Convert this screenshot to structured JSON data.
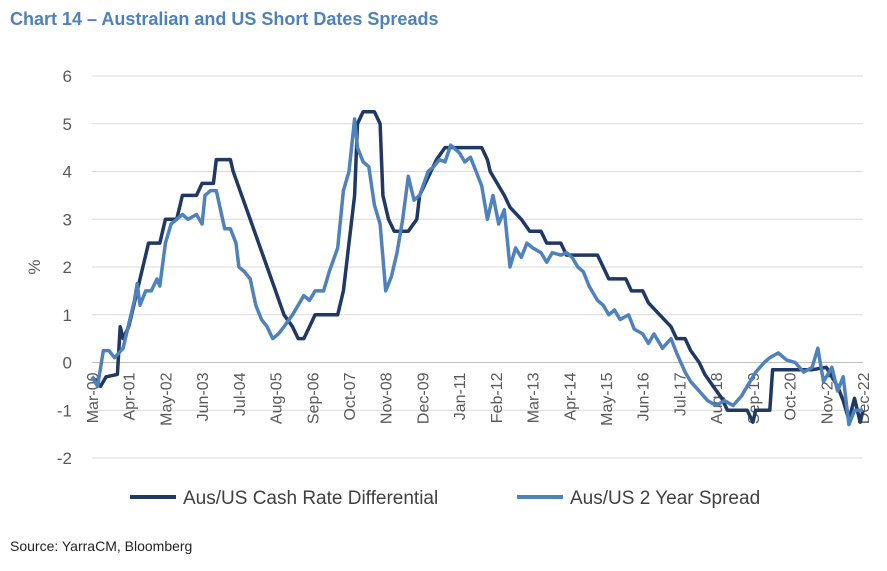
{
  "title": "Chart 14 – Australian and US Short Dates Spreads",
  "source": "Source: YarraCM, Bloomberg",
  "chart_data": {
    "type": "line",
    "ylabel": "%",
    "xlabel": "",
    "ylim": [
      -2,
      6
    ],
    "yticks": [
      6,
      5,
      4,
      3,
      2,
      1,
      0,
      -1,
      -2
    ],
    "xticks": [
      "Mar-00",
      "Apr-01",
      "May-02",
      "Jun-03",
      "Jul-04",
      "Aug-05",
      "Sep-06",
      "Oct-07",
      "Nov-08",
      "Dec-09",
      "Jan-11",
      "Feb-12",
      "Mar-13",
      "Apr-14",
      "May-15",
      "Jun-16",
      "Jul-17",
      "Aug-18",
      "Sep-19",
      "Oct-20",
      "Nov-21",
      "Dec-22"
    ],
    "xrange": [
      "2000-03",
      "2022-12"
    ],
    "grid": true,
    "legend_position": "bottom",
    "colors": {
      "cash": "#1f3864",
      "spread": "#4f81bd",
      "grid": "#d9d9d9"
    },
    "series": [
      {
        "name": "Aus/US Cash Rate Differential",
        "color": "#1f3864",
        "points": [
          [
            "2000-03",
            -0.3
          ],
          [
            "2000-06",
            -0.5
          ],
          [
            "2000-08",
            -0.3
          ],
          [
            "2000-12",
            -0.25
          ],
          [
            "2001-01",
            0.75
          ],
          [
            "2001-02",
            0.5
          ],
          [
            "2001-04",
            0.75
          ],
          [
            "2001-06",
            1.25
          ],
          [
            "2001-08",
            1.75
          ],
          [
            "2001-10",
            2.25
          ],
          [
            "2001-11",
            2.5
          ],
          [
            "2002-03",
            2.5
          ],
          [
            "2002-05",
            3.0
          ],
          [
            "2002-09",
            3.0
          ],
          [
            "2002-11",
            3.5
          ],
          [
            "2003-04",
            3.5
          ],
          [
            "2003-06",
            3.75
          ],
          [
            "2003-10",
            3.75
          ],
          [
            "2003-11",
            4.25
          ],
          [
            "2004-04",
            4.25
          ],
          [
            "2004-05",
            4.0
          ],
          [
            "2004-08",
            3.5
          ],
          [
            "2004-11",
            3.0
          ],
          [
            "2005-02",
            2.5
          ],
          [
            "2005-05",
            2.0
          ],
          [
            "2005-08",
            1.5
          ],
          [
            "2005-11",
            1.0
          ],
          [
            "2006-02",
            0.75
          ],
          [
            "2006-04",
            0.5
          ],
          [
            "2006-06",
            0.5
          ],
          [
            "2006-08",
            0.75
          ],
          [
            "2006-10",
            1.0
          ],
          [
            "2007-06",
            1.0
          ],
          [
            "2007-08",
            1.5
          ],
          [
            "2007-10",
            2.5
          ],
          [
            "2007-11",
            3.0
          ],
          [
            "2007-12",
            3.5
          ],
          [
            "2008-01",
            5.0
          ],
          [
            "2008-03",
            5.25
          ],
          [
            "2008-07",
            5.25
          ],
          [
            "2008-09",
            5.0
          ],
          [
            "2008-10",
            3.5
          ],
          [
            "2008-12",
            3.0
          ],
          [
            "2009-02",
            2.75
          ],
          [
            "2009-07",
            2.75
          ],
          [
            "2009-10",
            3.0
          ],
          [
            "2009-11",
            3.5
          ],
          [
            "2010-03",
            4.0
          ],
          [
            "2010-05",
            4.25
          ],
          [
            "2010-08",
            4.5
          ],
          [
            "2011-09",
            4.5
          ],
          [
            "2011-11",
            4.25
          ],
          [
            "2011-12",
            4.0
          ],
          [
            "2012-05",
            3.5
          ],
          [
            "2012-07",
            3.25
          ],
          [
            "2012-11",
            3.0
          ],
          [
            "2013-02",
            2.75
          ],
          [
            "2013-06",
            2.75
          ],
          [
            "2013-08",
            2.5
          ],
          [
            "2014-01",
            2.5
          ],
          [
            "2014-03",
            2.25
          ],
          [
            "2015-02",
            2.25
          ],
          [
            "2015-04",
            2.0
          ],
          [
            "2015-06",
            1.75
          ],
          [
            "2015-12",
            1.75
          ],
          [
            "2016-02",
            1.5
          ],
          [
            "2016-06",
            1.5
          ],
          [
            "2016-08",
            1.25
          ],
          [
            "2016-12",
            1.0
          ],
          [
            "2017-04",
            0.75
          ],
          [
            "2017-06",
            0.5
          ],
          [
            "2017-09",
            0.5
          ],
          [
            "2017-11",
            0.25
          ],
          [
            "2018-02",
            0.0
          ],
          [
            "2018-04",
            -0.25
          ],
          [
            "2018-07",
            -0.5
          ],
          [
            "2018-10",
            -0.75
          ],
          [
            "2018-12",
            -1.0
          ],
          [
            "2019-07",
            -1.0
          ],
          [
            "2019-09",
            -1.25
          ],
          [
            "2019-10",
            -1.0
          ],
          [
            "2020-03",
            -1.0
          ],
          [
            "2020-04",
            -0.15
          ],
          [
            "2020-12",
            -0.15
          ],
          [
            "2021-06",
            -0.15
          ],
          [
            "2021-11",
            -0.1
          ],
          [
            "2022-03",
            -0.5
          ],
          [
            "2022-05",
            -0.8
          ],
          [
            "2022-07",
            -1.2
          ],
          [
            "2022-09",
            -0.75
          ],
          [
            "2022-11",
            -1.25
          ],
          [
            "2022-12",
            -1.0
          ]
        ]
      },
      {
        "name": "Aus/US 2 Year Spread",
        "color": "#4f81bd",
        "points": [
          [
            "2000-03",
            -0.3
          ],
          [
            "2000-05",
            -0.5
          ],
          [
            "2000-07",
            0.25
          ],
          [
            "2000-09",
            0.25
          ],
          [
            "2000-11",
            0.1
          ],
          [
            "2001-02",
            0.3
          ],
          [
            "2001-04",
            0.8
          ],
          [
            "2001-06",
            1.3
          ],
          [
            "2001-07",
            1.65
          ],
          [
            "2001-08",
            1.2
          ],
          [
            "2001-10",
            1.5
          ],
          [
            "2001-12",
            1.5
          ],
          [
            "2002-02",
            1.75
          ],
          [
            "2002-03",
            1.6
          ],
          [
            "2002-05",
            2.5
          ],
          [
            "2002-07",
            2.9
          ],
          [
            "2002-09",
            3.0
          ],
          [
            "2002-11",
            3.1
          ],
          [
            "2003-01",
            3.0
          ],
          [
            "2003-04",
            3.1
          ],
          [
            "2003-06",
            2.9
          ],
          [
            "2003-07",
            3.5
          ],
          [
            "2003-09",
            3.6
          ],
          [
            "2003-11",
            3.6
          ],
          [
            "2004-02",
            2.8
          ],
          [
            "2004-04",
            2.8
          ],
          [
            "2004-06",
            2.5
          ],
          [
            "2004-07",
            2.0
          ],
          [
            "2004-09",
            1.9
          ],
          [
            "2004-11",
            1.75
          ],
          [
            "2005-01",
            1.2
          ],
          [
            "2005-03",
            0.9
          ],
          [
            "2005-05",
            0.75
          ],
          [
            "2005-07",
            0.5
          ],
          [
            "2005-09",
            0.6
          ],
          [
            "2005-11",
            0.75
          ],
          [
            "2006-02",
            1.0
          ],
          [
            "2006-04",
            1.2
          ],
          [
            "2006-06",
            1.4
          ],
          [
            "2006-08",
            1.3
          ],
          [
            "2006-10",
            1.5
          ],
          [
            "2007-01",
            1.5
          ],
          [
            "2007-03",
            1.9
          ],
          [
            "2007-06",
            2.4
          ],
          [
            "2007-08",
            3.6
          ],
          [
            "2007-10",
            4.0
          ],
          [
            "2007-12",
            5.1
          ],
          [
            "2008-01",
            4.5
          ],
          [
            "2008-03",
            4.2
          ],
          [
            "2008-05",
            4.1
          ],
          [
            "2008-07",
            3.3
          ],
          [
            "2008-09",
            2.9
          ],
          [
            "2008-11",
            1.5
          ],
          [
            "2009-01",
            1.8
          ],
          [
            "2009-03",
            2.3
          ],
          [
            "2009-05",
            3.0
          ],
          [
            "2009-07",
            3.9
          ],
          [
            "2009-09",
            3.4
          ],
          [
            "2009-11",
            3.5
          ],
          [
            "2010-02",
            4.0
          ],
          [
            "2010-04",
            4.1
          ],
          [
            "2010-06",
            4.25
          ],
          [
            "2010-08",
            4.2
          ],
          [
            "2010-10",
            4.55
          ],
          [
            "2011-01",
            4.4
          ],
          [
            "2011-03",
            4.2
          ],
          [
            "2011-05",
            4.3
          ],
          [
            "2011-07",
            4.0
          ],
          [
            "2011-09",
            3.7
          ],
          [
            "2011-11",
            3.0
          ],
          [
            "2012-01",
            3.5
          ],
          [
            "2012-03",
            2.9
          ],
          [
            "2012-05",
            3.2
          ],
          [
            "2012-07",
            2.0
          ],
          [
            "2012-09",
            2.4
          ],
          [
            "2012-11",
            2.2
          ],
          [
            "2013-01",
            2.5
          ],
          [
            "2013-03",
            2.4
          ],
          [
            "2013-06",
            2.3
          ],
          [
            "2013-08",
            2.1
          ],
          [
            "2013-10",
            2.3
          ],
          [
            "2014-01",
            2.25
          ],
          [
            "2014-03",
            2.3
          ],
          [
            "2014-05",
            2.2
          ],
          [
            "2014-07",
            2.0
          ],
          [
            "2014-09",
            1.9
          ],
          [
            "2014-11",
            1.6
          ],
          [
            "2015-02",
            1.3
          ],
          [
            "2015-04",
            1.2
          ],
          [
            "2015-06",
            1.0
          ],
          [
            "2015-08",
            1.1
          ],
          [
            "2015-10",
            0.9
          ],
          [
            "2016-01",
            1.0
          ],
          [
            "2016-03",
            0.7
          ],
          [
            "2016-06",
            0.6
          ],
          [
            "2016-08",
            0.4
          ],
          [
            "2016-10",
            0.6
          ],
          [
            "2017-01",
            0.3
          ],
          [
            "2017-04",
            0.5
          ],
          [
            "2017-06",
            0.2
          ],
          [
            "2017-09",
            -0.2
          ],
          [
            "2017-11",
            -0.4
          ],
          [
            "2018-02",
            -0.6
          ],
          [
            "2018-05",
            -0.8
          ],
          [
            "2018-08",
            -0.9
          ],
          [
            "2018-11",
            -0.8
          ],
          [
            "2019-02",
            -0.9
          ],
          [
            "2019-05",
            -0.7
          ],
          [
            "2019-07",
            -0.5
          ],
          [
            "2019-10",
            -0.2
          ],
          [
            "2020-01",
            0.0
          ],
          [
            "2020-03",
            0.1
          ],
          [
            "2020-06",
            0.2
          ],
          [
            "2020-09",
            0.05
          ],
          [
            "2020-12",
            0.0
          ],
          [
            "2021-03",
            -0.2
          ],
          [
            "2021-06",
            -0.1
          ],
          [
            "2021-08",
            0.3
          ],
          [
            "2021-10",
            -0.4
          ],
          [
            "2022-01",
            -0.1
          ],
          [
            "2022-03",
            -0.6
          ],
          [
            "2022-05",
            -0.3
          ],
          [
            "2022-07",
            -1.3
          ],
          [
            "2022-09",
            -1.0
          ],
          [
            "2022-12",
            -1.0
          ]
        ]
      }
    ]
  }
}
